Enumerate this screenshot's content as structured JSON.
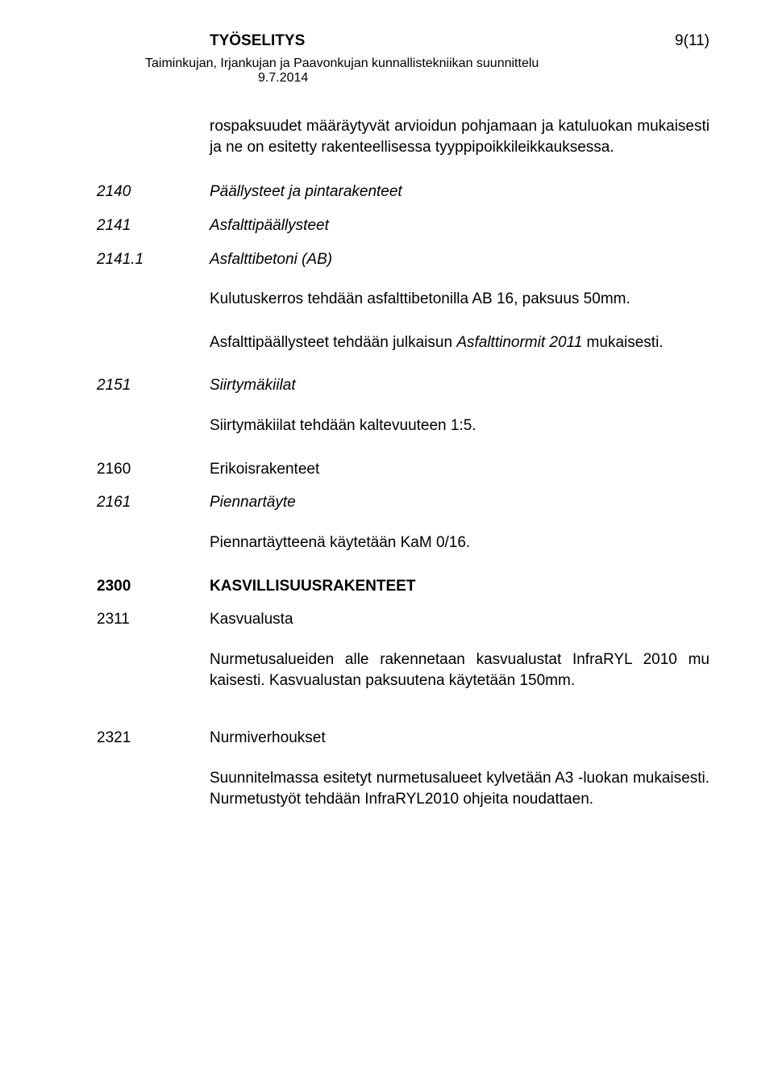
{
  "header": {
    "title": "TYÖSELITYS",
    "page_indicator": "9(11)",
    "subtitle": "Taiminkujan, Irjankujan ja Paavonkujan kunnallistekniikan suunnittelu",
    "date": "9.7.2014"
  },
  "intro_paragraph": "rospaksuudet määräytyvät arvioidun pohjamaan ja katuluokan mukaisesti ja ne on esitetty rakenteellisessa tyyppipoikkileikkauksessa.",
  "sections": [
    {
      "code": "2140",
      "label": "Päällysteet ja pintarakenteet",
      "italic": true,
      "bold": false
    },
    {
      "code": "2141",
      "label": "Asfalttipäällysteet",
      "italic": true,
      "bold": false
    },
    {
      "code": "2141.1",
      "label": "Asfalttibetoni (AB)",
      "italic": true,
      "bold": false
    }
  ],
  "para_2141_a": "Kulutuskerros tehdään asfalttibetonilla AB 16, paksuus 50mm.",
  "para_2141_b_pre": "Asfalttipäällysteet tehdään julkaisun ",
  "para_2141_b_em": "Asfalttinormit 2011",
  "para_2141_b_post": " mukaisesti.",
  "section_2151": {
    "code": "2151",
    "label": "Siirtymäkiilat",
    "italic": true
  },
  "para_2151": "Siirtymäkiilat tehdään kaltevuuteen 1:5.",
  "section_2160": {
    "code": "2160",
    "label": "Erikoisrakenteet",
    "italic": false
  },
  "section_2161": {
    "code": "2161",
    "label": "Piennartäyte",
    "italic": true
  },
  "para_2161": "Piennartäytteenä käytetään KaM 0/16.",
  "section_2300": {
    "code": "2300",
    "label": "KASVILLISUUSRAKENTEET",
    "bold": true
  },
  "section_2311": {
    "code": "2311",
    "label": "Kasvualusta",
    "italic": false
  },
  "para_2311": "Nurmetusalueiden alle rakennetaan kasvualustat InfraRYL 2010 mu kaisesti. Kasvualustan paksuutena käytetään 150mm.",
  "section_2321": {
    "code": "2321",
    "label": "Nurmiverhoukset",
    "italic": false
  },
  "para_2321": "Suunnitelmassa esitetyt nurmetusalueet kylvetään A3 -luokan mukaisesti. Nurmetustyöt tehdään InfraRYL2010 ohjeita noudattaen.",
  "style": {
    "font_family": "Arial",
    "body_font_size_pt": 14,
    "text_color": "#000000",
    "background_color": "#ffffff"
  }
}
